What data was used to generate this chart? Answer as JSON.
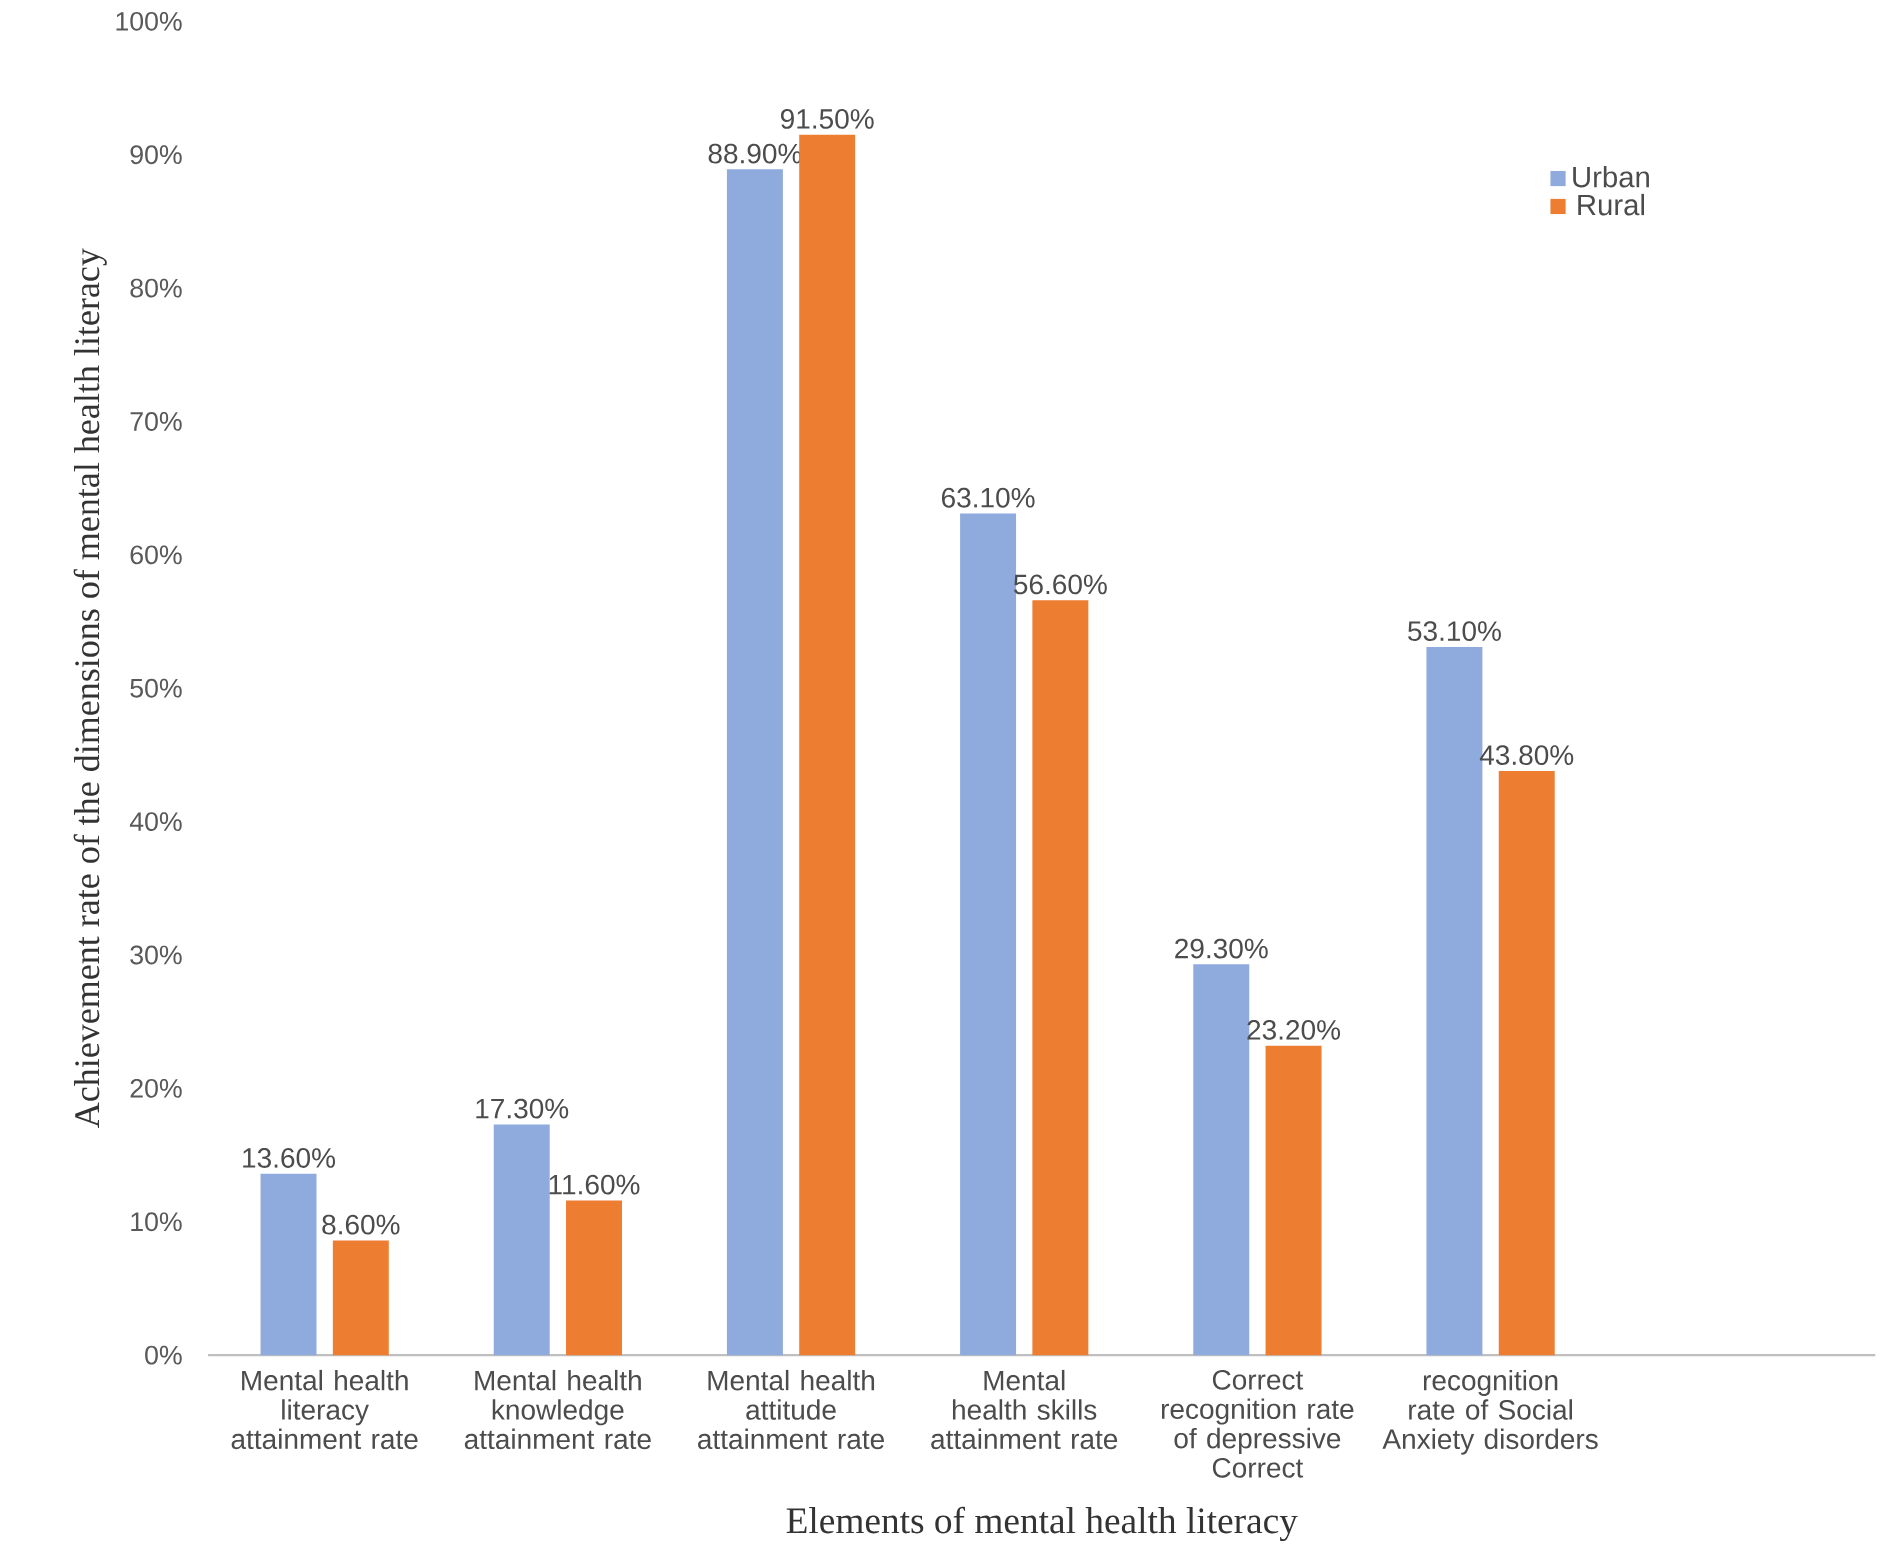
{
  "chart_data": {
    "type": "bar",
    "xlabel": "Elements of mental health literacy",
    "ylabel": "Achievement rate of the dimensions of mental health literacy",
    "categories": [
      "Mental health literacy attainment rate",
      "Mental health knowledge attainment rate",
      "Mental health attitude attainment rate",
      "Mental health skills attainment rate",
      "Correct recognition rate of depressive Correct",
      "recognition rate of Social Anxiety disorders"
    ],
    "series": [
      {
        "name": "Urban",
        "color": "#8faadc",
        "values": [
          13.6,
          17.3,
          88.9,
          63.1,
          29.3,
          53.1
        ],
        "value_labels": [
          "13.60%",
          "17.30%",
          "88.90%",
          "63.10%",
          "29.30%",
          "53.10%"
        ]
      },
      {
        "name": "Rural",
        "color": "#ed7d31",
        "values": [
          8.6,
          11.6,
          91.5,
          56.6,
          23.2,
          43.8
        ],
        "value_labels": [
          "8.60%",
          "11.60%",
          "91.50%",
          "56.60%",
          "23.20%",
          "43.80%"
        ]
      }
    ],
    "ylim": [
      0,
      100
    ],
    "yticks": [
      {
        "value": 0,
        "label": "0%"
      },
      {
        "value": 10,
        "label": "10%"
      },
      {
        "value": 20,
        "label": "20%"
      },
      {
        "value": 30,
        "label": "30%"
      },
      {
        "value": 40,
        "label": "40%"
      },
      {
        "value": 50,
        "label": "50%"
      },
      {
        "value": 60,
        "label": "60%"
      },
      {
        "value": 70,
        "label": "70%"
      },
      {
        "value": 80,
        "label": "80%"
      },
      {
        "value": 90,
        "label": "90%"
      },
      {
        "value": 100,
        "label": "100%"
      }
    ],
    "legend": "top right",
    "grid": false
  }
}
